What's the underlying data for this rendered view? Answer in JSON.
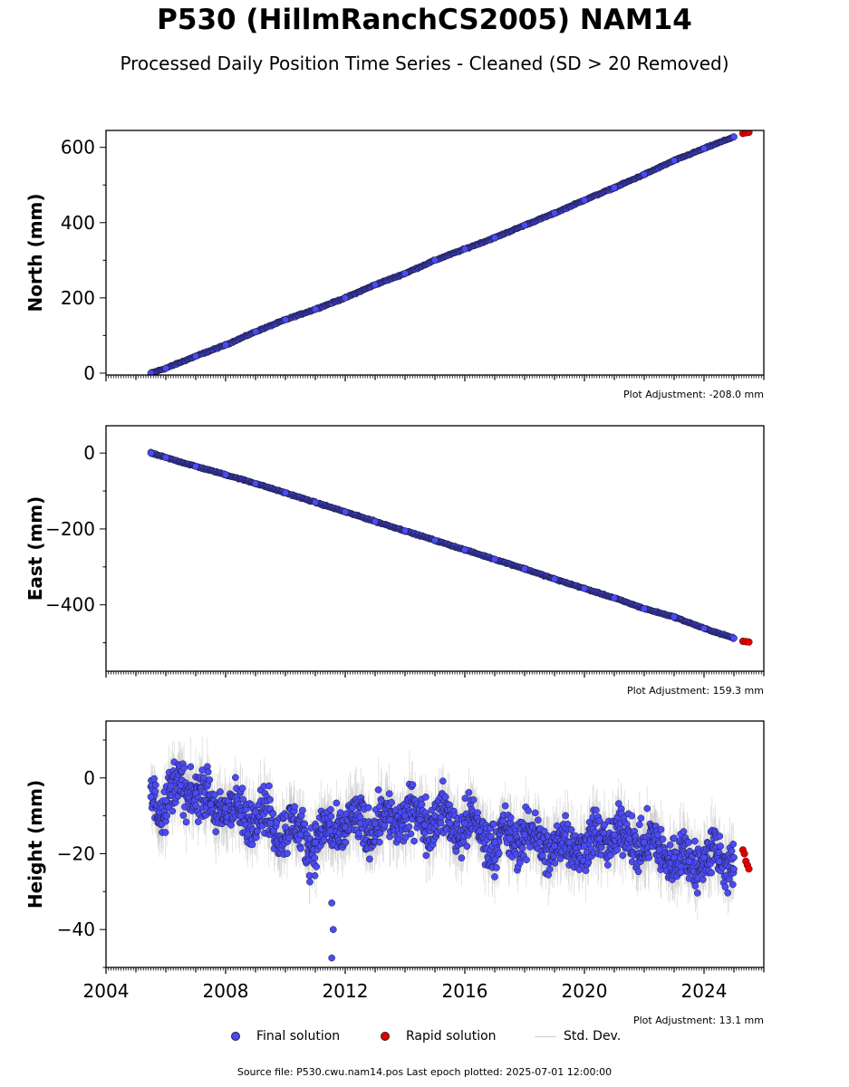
{
  "title": "P530 (HillmRanchCS2005) NAM14",
  "subtitle": "Processed Daily Position Time Series - Cleaned (SD > 20 Removed)",
  "legend": {
    "final": "Final solution",
    "rapid": "Rapid solution",
    "stddev": "Std. Dev."
  },
  "footer": "Source file: P530.cwu.nam14.pos  Last epoch plotted: 2025-07-01 12:00:00",
  "colors": {
    "final": "#4b4bf5",
    "rapid": "#e00000",
    "stddev": "#bfbfbf",
    "edge": "#1a1a3a"
  },
  "chart_data": [
    {
      "type": "scatter",
      "ylabel": "North (mm)",
      "adjustment": "Plot Adjustment: -208.0 mm",
      "xlim": [
        2004,
        2026
      ],
      "ylim": [
        -5,
        645
      ],
      "yticks": [
        0,
        200,
        400,
        600
      ],
      "ytick_labels": [
        "0",
        "200",
        "400",
        "600"
      ],
      "series": [
        {
          "name": "Final solution",
          "x": [
            2005.5,
            2006.0,
            2007.0,
            2008.0,
            2009.0,
            2010.0,
            2011.0,
            2012.0,
            2013.0,
            2014.0,
            2015.0,
            2016.0,
            2017.0,
            2018.0,
            2019.0,
            2020.0,
            2021.0,
            2022.0,
            2023.0,
            2024.0,
            2025.0
          ],
          "y": [
            0,
            13,
            45,
            75,
            110,
            142,
            170,
            200,
            235,
            265,
            300,
            330,
            360,
            393,
            425,
            460,
            493,
            528,
            565,
            597,
            628
          ]
        },
        {
          "name": "Rapid solution",
          "x": [
            2025.3,
            2025.4,
            2025.5
          ],
          "y": [
            637,
            639,
            640
          ]
        }
      ]
    },
    {
      "type": "scatter",
      "ylabel": "East (mm)",
      "adjustment": "Plot Adjustment: 159.3 mm",
      "xlim": [
        2004,
        2026
      ],
      "ylim": [
        -575,
        72
      ],
      "yticks": [
        -400,
        -200,
        0
      ],
      "ytick_labels": [
        "−400",
        "−200",
        "0"
      ],
      "series": [
        {
          "name": "Final solution",
          "x": [
            2005.5,
            2006.0,
            2007.0,
            2008.0,
            2009.0,
            2010.0,
            2011.0,
            2012.0,
            2013.0,
            2014.0,
            2015.0,
            2016.0,
            2017.0,
            2018.0,
            2019.0,
            2020.0,
            2021.0,
            2022.0,
            2023.0,
            2024.0,
            2025.0
          ],
          "y": [
            0,
            -12,
            -35,
            -57,
            -80,
            -105,
            -130,
            -155,
            -180,
            -205,
            -230,
            -255,
            -280,
            -305,
            -332,
            -357,
            -382,
            -410,
            -432,
            -462,
            -488
          ]
        },
        {
          "name": "Rapid solution",
          "x": [
            2025.3,
            2025.4,
            2025.5
          ],
          "y": [
            -496,
            -497,
            -498
          ]
        }
      ]
    },
    {
      "type": "scatter",
      "ylabel": "Height (mm)",
      "adjustment": "Plot Adjustment: 13.1 mm",
      "xlim": [
        2004,
        2026
      ],
      "ylim": [
        -50,
        15
      ],
      "xticks": [
        2004,
        2008,
        2012,
        2016,
        2020,
        2024
      ],
      "xtick_labels": [
        "2004",
        "2008",
        "2012",
        "2016",
        "2020",
        "2024"
      ],
      "yticks": [
        -40,
        -20,
        0
      ],
      "ytick_labels": [
        "−40",
        "−20",
        "0"
      ],
      "series": [
        {
          "name": "Final solution",
          "x": [
            2005.5,
            2006.0,
            2006.5,
            2007.0,
            2007.5,
            2008.0,
            2008.5,
            2009.0,
            2009.5,
            2010.0,
            2010.5,
            2011.0,
            2011.5,
            2012.0,
            2012.5,
            2013.0,
            2013.5,
            2014.0,
            2014.5,
            2015.0,
            2015.5,
            2016.0,
            2016.5,
            2017.0,
            2017.5,
            2018.0,
            2018.5,
            2019.0,
            2019.5,
            2020.0,
            2020.5,
            2021.0,
            2021.5,
            2022.0,
            2022.5,
            2023.0,
            2023.5,
            2024.0,
            2024.5,
            2025.0
          ],
          "y": [
            -5,
            -6,
            -2,
            -4,
            -7,
            -8,
            -10,
            -9,
            -12,
            -13,
            -15,
            -17,
            -14,
            -13,
            -12,
            -12,
            -11,
            -10,
            -11,
            -10,
            -12,
            -12,
            -14,
            -17,
            -16,
            -15,
            -17,
            -18,
            -17,
            -18,
            -16,
            -15,
            -16,
            -17,
            -19,
            -21,
            -22,
            -21,
            -22,
            -21
          ]
        },
        {
          "name": "Rapid solution",
          "x": [
            2025.3,
            2025.35,
            2025.4,
            2025.45,
            2025.5
          ],
          "y": [
            -19,
            -20,
            -22,
            -23,
            -24
          ]
        }
      ],
      "annotations": "Outliers near 2011.5 down to about -47; std. dev. error bars shown in grey"
    }
  ]
}
